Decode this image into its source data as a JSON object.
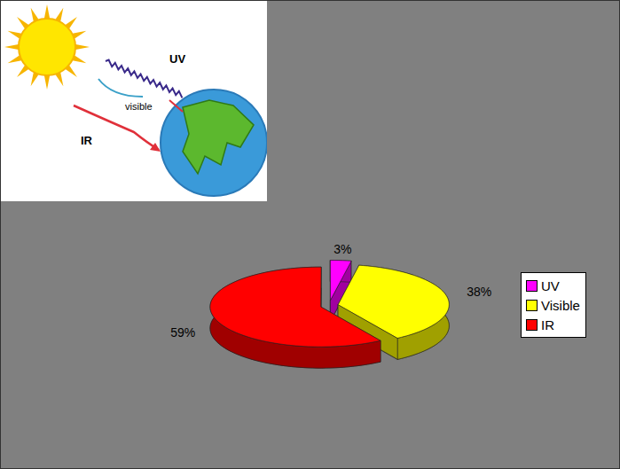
{
  "chart_data": {
    "type": "pie",
    "categories": [
      "UV",
      "Visible",
      "IR"
    ],
    "values": [
      3,
      38,
      59
    ],
    "value_labels": [
      "3%",
      "38%",
      "59%"
    ],
    "colors": [
      "#ff00ff",
      "#ffff00",
      "#ff0000"
    ],
    "data_labels": true,
    "legend": "right"
  },
  "illustration": {
    "labels": [
      "UV",
      "visible",
      "IR"
    ]
  }
}
